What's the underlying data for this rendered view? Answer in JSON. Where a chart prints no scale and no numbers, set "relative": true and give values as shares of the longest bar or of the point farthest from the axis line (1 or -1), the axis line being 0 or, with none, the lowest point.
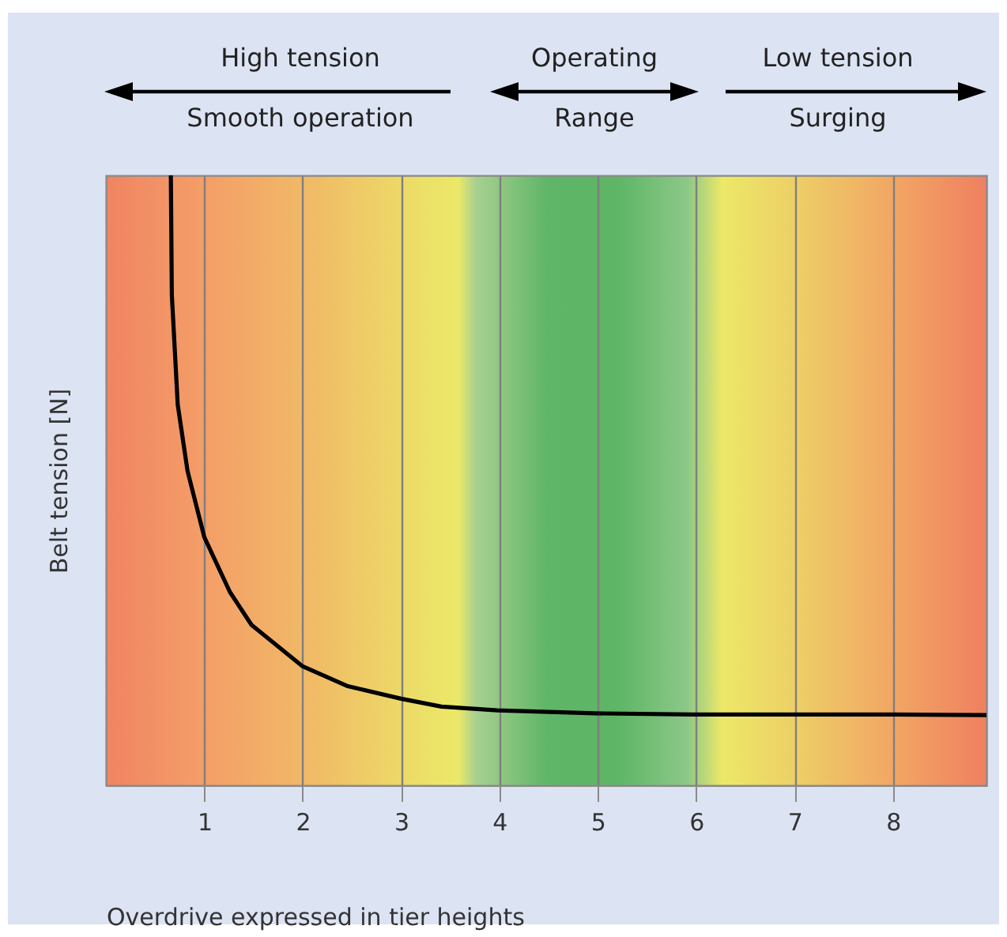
{
  "chart_data": {
    "type": "line",
    "xlabel": "Overdrive expressed in tier heights",
    "ylabel": "Belt tension [N]",
    "annotations": [
      "High tension",
      "Smooth operation",
      "Operating",
      "Range",
      "Low tension",
      "Surging"
    ],
    "x": [
      0.66,
      0.67,
      0.73,
      0.83,
      1.0,
      1.26,
      1.48,
      2.0,
      2.45,
      3.0,
      3.41,
      3.98,
      4.97,
      5.97,
      7.0,
      8.0,
      8.95
    ],
    "series": [
      {
        "color": "#000000",
        "values": [
          1,
          0.804,
          0.624,
          0.515,
          0.407,
          0.317,
          0.263,
          0.195,
          0.163,
          0.142,
          0.129,
          0.123,
          0.118,
          0.116,
          0.116,
          0.116,
          0.115
        ]
      }
    ],
    "relative": true,
    "xlim": [
      0,
      8.95
    ],
    "xticks": [
      1,
      2,
      3,
      4,
      5,
      6,
      7,
      8
    ],
    "grid": "x"
  }
}
